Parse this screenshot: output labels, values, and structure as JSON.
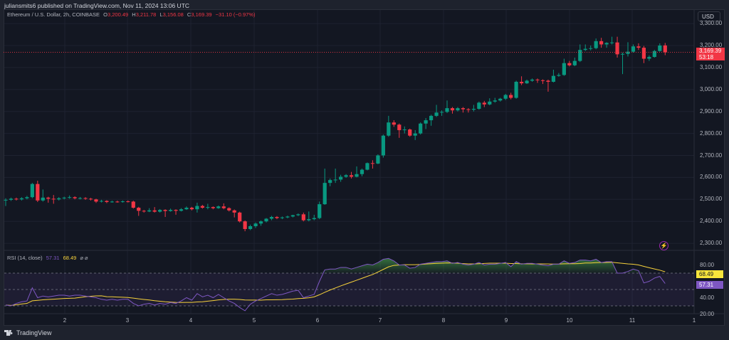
{
  "header": {
    "author_line": "juliansmits6 published on TradingView.com, Nov 11, 2024 13:06 UTC"
  },
  "legend": {
    "symbol": "Ethereum / U.S. Dollar, 2h, COINBASE",
    "o_label": "O",
    "o": "3,200.49",
    "h_label": "H",
    "h": "3,211.78",
    "l_label": "L",
    "l": "3,156.08",
    "c_label": "C",
    "c": "3,169.39",
    "change": "−31.10 (−0.97%)"
  },
  "currency_button": "USD",
  "last_price": {
    "value": "3,169.39",
    "countdown": "53:18",
    "price": 3169.39
  },
  "rsi_legend": {
    "name": "RSI (14, close)",
    "rsi": "57.31",
    "ma": "68.49",
    "icons": "⌀ ⌀"
  },
  "rsi_tags": {
    "ma": "68.49",
    "rsi": "57.31"
  },
  "footer": {
    "brand": "TradingView"
  },
  "colors": {
    "up": "#089981",
    "down": "#f23645",
    "rsi": "#7e57c2",
    "rsi_ma": "#f7d23b",
    "background": "#131722",
    "grid": "#1e2230"
  },
  "chart_data": [
    {
      "type": "candlestick",
      "title": "Ethereum / U.S. Dollar, 2h, COINBASE",
      "x_ticks": [
        "2",
        "3",
        "4",
        "5",
        "6",
        "7",
        "8",
        "9",
        "10",
        "11",
        "1"
      ],
      "y_ticks": [
        "3,300.00",
        "3,200.00",
        "3,100.00",
        "3,000.00",
        "2,900.00",
        "2,800.00",
        "2,700.00",
        "2,600.00",
        "2,500.00",
        "2,400.00",
        "2,300.00"
      ],
      "ylim": [
        2270,
        3300
      ],
      "grid": true,
      "candles_ohlc": [
        [
          2495,
          2505,
          2470,
          2498
        ],
        [
          2498,
          2508,
          2493,
          2503
        ],
        [
          2503,
          2508,
          2495,
          2500
        ],
        [
          2500,
          2510,
          2495,
          2505
        ],
        [
          2505,
          2516,
          2500,
          2510
        ],
        [
          2510,
          2575,
          2505,
          2570
        ],
        [
          2570,
          2585,
          2488,
          2495
        ],
        [
          2495,
          2545,
          2490,
          2508
        ],
        [
          2508,
          2512,
          2485,
          2503
        ],
        [
          2503,
          2520,
          2480,
          2500
        ],
        [
          2500,
          2510,
          2495,
          2505
        ],
        [
          2505,
          2512,
          2500,
          2508
        ],
        [
          2508,
          2518,
          2503,
          2510
        ],
        [
          2510,
          2514,
          2500,
          2505
        ],
        [
          2505,
          2511,
          2500,
          2506
        ],
        [
          2506,
          2510,
          2498,
          2503
        ],
        [
          2503,
          2507,
          2495,
          2500
        ],
        [
          2500,
          2503,
          2484,
          2490
        ],
        [
          2490,
          2498,
          2486,
          2493
        ],
        [
          2493,
          2496,
          2483,
          2488
        ],
        [
          2488,
          2494,
          2485,
          2490
        ],
        [
          2490,
          2494,
          2485,
          2489
        ],
        [
          2489,
          2495,
          2485,
          2491
        ],
        [
          2491,
          2495,
          2486,
          2490
        ],
        [
          2490,
          2494,
          2458,
          2462
        ],
        [
          2462,
          2466,
          2425,
          2448
        ],
        [
          2448,
          2452,
          2440,
          2445
        ],
        [
          2445,
          2460,
          2442,
          2450
        ],
        [
          2450,
          2465,
          2440,
          2444
        ],
        [
          2444,
          2456,
          2440,
          2452
        ],
        [
          2452,
          2455,
          2420,
          2447
        ],
        [
          2447,
          2458,
          2444,
          2452
        ],
        [
          2452,
          2455,
          2430,
          2448
        ],
        [
          2448,
          2460,
          2445,
          2455
        ],
        [
          2455,
          2468,
          2452,
          2462
        ],
        [
          2462,
          2466,
          2450,
          2455
        ],
        [
          2455,
          2485,
          2440,
          2470
        ],
        [
          2470,
          2475,
          2458,
          2462
        ],
        [
          2462,
          2480,
          2455,
          2465
        ],
        [
          2465,
          2468,
          2455,
          2460
        ],
        [
          2460,
          2472,
          2457,
          2468
        ],
        [
          2468,
          2482,
          2455,
          2460
        ],
        [
          2460,
          2464,
          2445,
          2450
        ],
        [
          2450,
          2454,
          2418,
          2440
        ],
        [
          2440,
          2444,
          2395,
          2400
        ],
        [
          2400,
          2404,
          2355,
          2365
        ],
        [
          2365,
          2385,
          2360,
          2378
        ],
        [
          2378,
          2395,
          2370,
          2390
        ],
        [
          2390,
          2404,
          2380,
          2400
        ],
        [
          2400,
          2415,
          2395,
          2412
        ],
        [
          2412,
          2425,
          2405,
          2420
        ],
        [
          2420,
          2424,
          2410,
          2415
        ],
        [
          2415,
          2422,
          2410,
          2418
        ],
        [
          2418,
          2426,
          2414,
          2422
        ],
        [
          2422,
          2430,
          2418,
          2428
        ],
        [
          2428,
          2436,
          2424,
          2432
        ],
        [
          2432,
          2440,
          2400,
          2405
        ],
        [
          2405,
          2445,
          2400,
          2410
        ],
        [
          2410,
          2430,
          2405,
          2415
        ],
        [
          2415,
          2490,
          2410,
          2478
        ],
        [
          2478,
          2640,
          2475,
          2575
        ],
        [
          2575,
          2595,
          2560,
          2588
        ],
        [
          2588,
          2640,
          2575,
          2590
        ],
        [
          2590,
          2612,
          2580,
          2603
        ],
        [
          2603,
          2615,
          2598,
          2610
        ],
        [
          2610,
          2625,
          2595,
          2603
        ],
        [
          2603,
          2650,
          2600,
          2615
        ],
        [
          2615,
          2640,
          2605,
          2635
        ],
        [
          2635,
          2668,
          2632,
          2665
        ],
        [
          2665,
          2678,
          2640,
          2663
        ],
        [
          2663,
          2705,
          2660,
          2700
        ],
        [
          2700,
          2795,
          2690,
          2790
        ],
        [
          2790,
          2880,
          2785,
          2850
        ],
        [
          2850,
          2860,
          2830,
          2840
        ],
        [
          2840,
          2845,
          2780,
          2815
        ],
        [
          2815,
          2832,
          2800,
          2818
        ],
        [
          2818,
          2822,
          2785,
          2790
        ],
        [
          2790,
          2815,
          2770,
          2800
        ],
        [
          2800,
          2850,
          2795,
          2845
        ],
        [
          2845,
          2870,
          2820,
          2860
        ],
        [
          2860,
          2885,
          2835,
          2880
        ],
        [
          2880,
          2930,
          2875,
          2895
        ],
        [
          2895,
          2905,
          2880,
          2898
        ],
        [
          2898,
          2950,
          2893,
          2915
        ],
        [
          2915,
          2920,
          2890,
          2905
        ],
        [
          2905,
          2920,
          2900,
          2915
        ],
        [
          2915,
          2920,
          2895,
          2910
        ],
        [
          2910,
          2915,
          2895,
          2908
        ],
        [
          2908,
          2930,
          2900,
          2912
        ],
        [
          2912,
          2945,
          2908,
          2940
        ],
        [
          2940,
          2948,
          2920,
          2932
        ],
        [
          2932,
          2960,
          2928,
          2945
        ],
        [
          2945,
          2962,
          2940,
          2950
        ],
        [
          2950,
          2962,
          2945,
          2958
        ],
        [
          2958,
          2980,
          2952,
          2975
        ],
        [
          2975,
          2985,
          2955,
          2962
        ],
        [
          2962,
          3040,
          2958,
          3035
        ],
        [
          3035,
          3060,
          3020,
          3028
        ],
        [
          3028,
          3045,
          3025,
          3040
        ],
        [
          3040,
          3050,
          3035,
          3045
        ],
        [
          3045,
          3050,
          3030,
          3042
        ],
        [
          3042,
          3046,
          3025,
          3040
        ],
        [
          3040,
          3045,
          2990,
          3035
        ],
        [
          3035,
          3090,
          3032,
          3062
        ],
        [
          3062,
          3075,
          3058,
          3066
        ],
        [
          3066,
          3140,
          3062,
          3120
        ],
        [
          3120,
          3130,
          3105,
          3110
        ],
        [
          3110,
          3145,
          3106,
          3130
        ],
        [
          3130,
          3205,
          3125,
          3180
        ],
        [
          3180,
          3205,
          3175,
          3185
        ],
        [
          3185,
          3200,
          3178,
          3188
        ],
        [
          3188,
          3232,
          3183,
          3220
        ],
        [
          3220,
          3235,
          3190,
          3205
        ],
        [
          3205,
          3215,
          3190,
          3212
        ],
        [
          3212,
          3240,
          3205,
          3214
        ],
        [
          3214,
          3240,
          3145,
          3160
        ],
        [
          3160,
          3168,
          3070,
          3162
        ],
        [
          3162,
          3215,
          3150,
          3172
        ],
        [
          3172,
          3205,
          3168,
          3196
        ],
        [
          3196,
          3210,
          3180,
          3190
        ],
        [
          3190,
          3198,
          3120,
          3140
        ],
        [
          3140,
          3155,
          3130,
          3148
        ],
        [
          3148,
          3180,
          3145,
          3175
        ],
        [
          3175,
          3210,
          3172,
          3200
        ],
        [
          3200.49,
          3211.78,
          3156.08,
          3169.39
        ]
      ]
    },
    {
      "type": "line",
      "title": "RSI (14, close)",
      "y_ticks": [
        "80.00",
        "40.00",
        "20.00"
      ],
      "ylim": [
        15,
        90
      ],
      "bands": [
        70,
        50,
        30
      ],
      "series": [
        {
          "name": "RSI",
          "values": [
            31,
            30,
            33,
            35,
            36,
            52,
            40,
            42,
            41,
            42,
            43,
            43,
            42,
            43,
            43,
            42,
            41,
            40,
            38,
            37,
            38,
            37,
            38,
            38,
            33,
            30,
            32,
            33,
            31,
            33,
            32,
            34,
            33,
            36,
            40,
            37,
            45,
            41,
            43,
            40,
            44,
            40,
            36,
            33,
            28,
            24,
            32,
            36,
            39,
            42,
            45,
            43,
            44,
            46,
            48,
            49,
            40,
            42,
            44,
            60,
            74,
            75,
            75,
            77,
            77,
            75,
            77,
            79,
            81,
            80,
            83,
            87,
            88,
            85,
            80,
            80,
            76,
            77,
            81,
            82,
            83,
            84,
            84,
            85,
            82,
            83,
            81,
            80,
            81,
            83,
            80,
            81,
            81,
            82,
            83,
            78,
            84,
            81,
            82,
            82,
            81,
            80,
            79,
            81,
            81,
            85,
            82,
            83,
            86,
            86,
            85,
            87,
            83,
            84,
            84,
            70,
            70,
            72,
            75,
            73,
            58,
            60,
            64,
            66,
            57.31
          ]
        },
        {
          "name": "RSI-based MA",
          "period": 14,
          "last": 68.49
        }
      ]
    }
  ]
}
